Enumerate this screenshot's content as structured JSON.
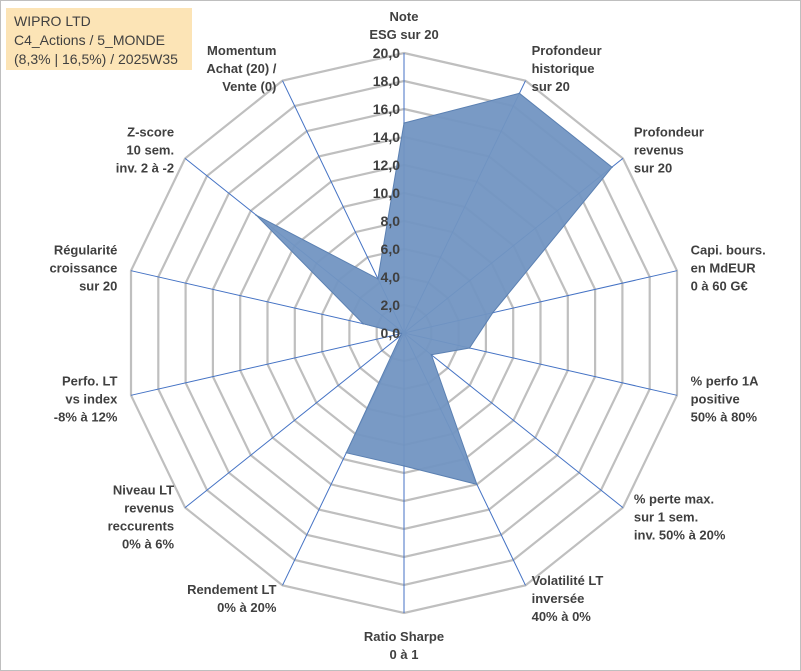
{
  "info_box": {
    "line1": "WIPRO LTD",
    "line2": "C4_Actions / 5_MONDE",
    "line3": "(8,3% | 16,5%) / 2025W35"
  },
  "colors": {
    "fill": "#7295c2",
    "stroke": "#5b80b2",
    "grid": "#bfbfbf",
    "spoke": "#4472c4",
    "text": "#404040"
  },
  "chart_data": {
    "type": "radar",
    "title": "",
    "rlim": [
      0,
      20
    ],
    "ticks": [
      "0,0",
      "2,0",
      "4,0",
      "6,0",
      "8,0",
      "10,0",
      "12,0",
      "14,0",
      "16,0",
      "18,0",
      "20,0"
    ],
    "legend": "none",
    "grid": true,
    "categories": [
      [
        "Note",
        "ESG sur 20"
      ],
      [
        "Profondeur",
        "historique",
        "sur 20"
      ],
      [
        "Profondeur",
        "revenus",
        "sur 20"
      ],
      [
        "Capi. bours.",
        "en MdEUR",
        "0 à 60 G€"
      ],
      [
        "% perfo 1A",
        "positive",
        "50% à 80%"
      ],
      [
        "% perte max.",
        "sur 1 sem.",
        "inv. 50% à 20%"
      ],
      [
        "Volatilité LT",
        "inversée",
        "40% à 0%"
      ],
      [
        "Ratio Sharpe",
        "0 à 1"
      ],
      [
        "Rendement LT",
        "0% à 20%"
      ],
      [
        "Niveau LT",
        "revenus",
        "reccurents",
        "0% à 6%"
      ],
      [
        "Perfo. LT",
        "vs index",
        "-8% à 12%"
      ],
      [
        "Régularité",
        "croissance",
        "sur 20"
      ],
      [
        "Z-score",
        "10 sem.",
        "inv. 2 à -2"
      ],
      [
        "Momentum",
        "Achat (20) /",
        "Vente (0)"
      ]
    ],
    "series": [
      {
        "values": [
          15.0,
          19.0,
          19.0,
          6.5,
          4.8,
          2.5,
          12.0,
          9.5,
          9.5,
          0.3,
          0.2,
          3.0,
          13.5,
          4.3
        ]
      }
    ]
  }
}
